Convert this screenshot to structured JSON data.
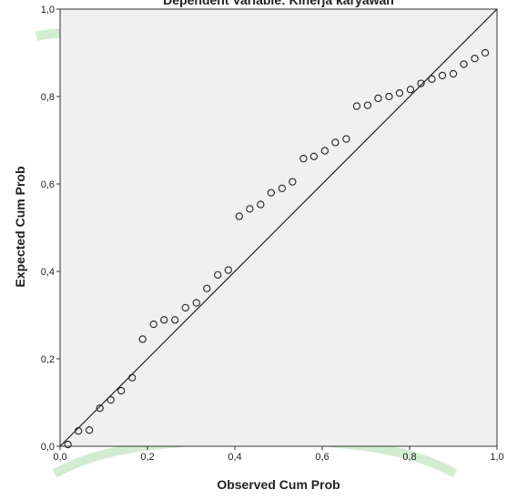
{
  "chart_data": {
    "type": "scatter",
    "title": "Dependent Variable: Kinerja karyawan",
    "xlabel": "Observed Cum Prob",
    "ylabel": "Expected Cum Prob",
    "xlim": [
      0,
      1
    ],
    "ylim": [
      0,
      1
    ],
    "x_ticks": [
      "0,0",
      "0,2",
      "0,4",
      "0,6",
      "0,8",
      "1,0"
    ],
    "y_ticks": [
      "0,0",
      "0,2",
      "0,4",
      "0,6",
      "0,8",
      "1,0"
    ],
    "tick_values": [
      0,
      0.2,
      0.4,
      0.6,
      0.8,
      1.0
    ],
    "grid": false,
    "reference_line": {
      "from": [
        0,
        0
      ],
      "to": [
        1,
        1
      ]
    },
    "points": [
      {
        "x": 0.018,
        "y": 0.004
      },
      {
        "x": 0.042,
        "y": 0.035
      },
      {
        "x": 0.067,
        "y": 0.037
      },
      {
        "x": 0.091,
        "y": 0.087
      },
      {
        "x": 0.116,
        "y": 0.106
      },
      {
        "x": 0.14,
        "y": 0.127
      },
      {
        "x": 0.165,
        "y": 0.157
      },
      {
        "x": 0.189,
        "y": 0.245
      },
      {
        "x": 0.214,
        "y": 0.279
      },
      {
        "x": 0.238,
        "y": 0.289
      },
      {
        "x": 0.263,
        "y": 0.289
      },
      {
        "x": 0.287,
        "y": 0.317
      },
      {
        "x": 0.312,
        "y": 0.328
      },
      {
        "x": 0.336,
        "y": 0.361
      },
      {
        "x": 0.361,
        "y": 0.392
      },
      {
        "x": 0.385,
        "y": 0.403
      },
      {
        "x": 0.41,
        "y": 0.526
      },
      {
        "x": 0.434,
        "y": 0.543
      },
      {
        "x": 0.459,
        "y": 0.553
      },
      {
        "x": 0.483,
        "y": 0.58
      },
      {
        "x": 0.508,
        "y": 0.59
      },
      {
        "x": 0.532,
        "y": 0.605
      },
      {
        "x": 0.557,
        "y": 0.658
      },
      {
        "x": 0.581,
        "y": 0.663
      },
      {
        "x": 0.606,
        "y": 0.676
      },
      {
        "x": 0.63,
        "y": 0.695
      },
      {
        "x": 0.655,
        "y": 0.703
      },
      {
        "x": 0.679,
        "y": 0.778
      },
      {
        "x": 0.704,
        "y": 0.78
      },
      {
        "x": 0.728,
        "y": 0.796
      },
      {
        "x": 0.753,
        "y": 0.8
      },
      {
        "x": 0.777,
        "y": 0.808
      },
      {
        "x": 0.802,
        "y": 0.816
      },
      {
        "x": 0.826,
        "y": 0.83
      },
      {
        "x": 0.851,
        "y": 0.84
      },
      {
        "x": 0.875,
        "y": 0.848
      },
      {
        "x": 0.9,
        "y": 0.852
      },
      {
        "x": 0.924,
        "y": 0.874
      },
      {
        "x": 0.949,
        "y": 0.887
      },
      {
        "x": 0.973,
        "y": 0.9
      }
    ]
  }
}
